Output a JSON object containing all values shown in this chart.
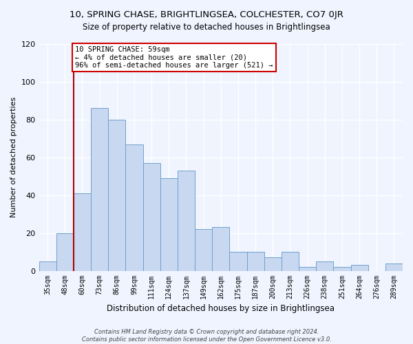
{
  "title1": "10, SPRING CHASE, BRIGHTLINGSEA, COLCHESTER, CO7 0JR",
  "title2": "Size of property relative to detached houses in Brightlingsea",
  "xlabel": "Distribution of detached houses by size in Brightlingsea",
  "ylabel": "Number of detached properties",
  "bar_labels": [
    "35sqm",
    "48sqm",
    "60sqm",
    "73sqm",
    "86sqm",
    "99sqm",
    "111sqm",
    "124sqm",
    "137sqm",
    "149sqm",
    "162sqm",
    "175sqm",
    "187sqm",
    "200sqm",
    "213sqm",
    "226sqm",
    "238sqm",
    "251sqm",
    "264sqm",
    "276sqm",
    "289sqm"
  ],
  "bar_values": [
    5,
    20,
    41,
    86,
    80,
    67,
    57,
    49,
    53,
    22,
    23,
    10,
    10,
    7,
    10,
    2,
    5,
    2,
    3,
    0,
    4
  ],
  "bar_color": "#c8d8f0",
  "bar_edge_color": "#6fa0cc",
  "vline_x_index": 2,
  "vline_color": "#aa0000",
  "annotation_text": "10 SPRING CHASE: 59sqm\n← 4% of detached houses are smaller (20)\n96% of semi-detached houses are larger (521) →",
  "annotation_box_color": "#ffffff",
  "annotation_box_edge_color": "#cc0000",
  "ylim": [
    0,
    120
  ],
  "yticks": [
    0,
    20,
    40,
    60,
    80,
    100,
    120
  ],
  "footer_text": "Contains HM Land Registry data © Crown copyright and database right 2024.\nContains public sector information licensed under the Open Government Licence v3.0.",
  "bg_color": "#f0f4ff"
}
